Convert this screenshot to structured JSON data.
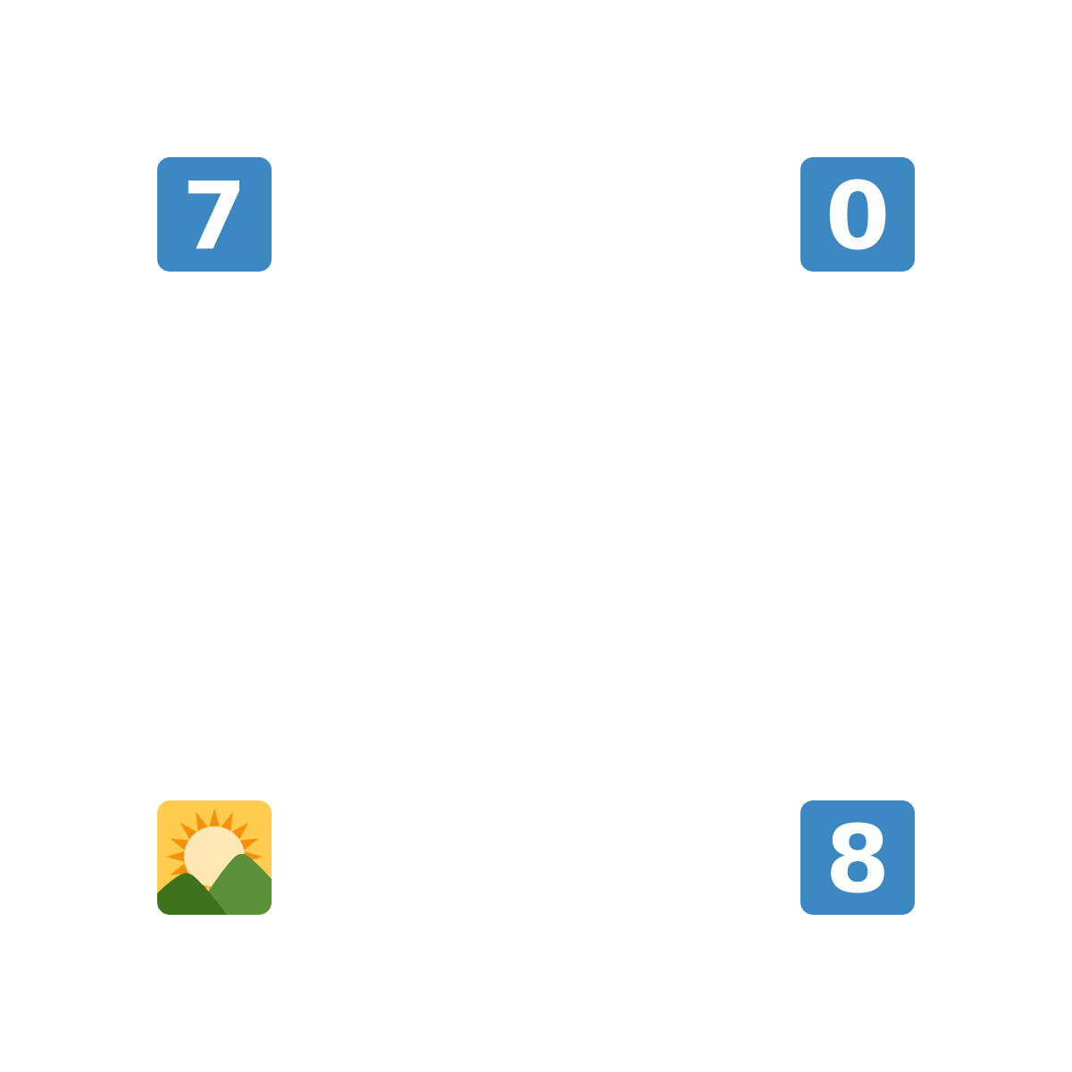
{
  "tiles": {
    "top_left": {
      "icon": "keycap-digit-seven-icon",
      "label": "7",
      "color": "#3b88c3"
    },
    "top_right": {
      "icon": "keycap-digit-zero-icon",
      "label": "0",
      "color": "#3b88c3"
    },
    "bottom_left": {
      "icon": "sunrise-over-mountains-icon"
    },
    "bottom_right": {
      "icon": "keycap-digit-eight-icon",
      "label": "8",
      "color": "#3b88c3"
    }
  },
  "colors": {
    "keycap_blue": "#3b88c3",
    "sky_yellow": "#ffcc4d",
    "sun_rays": "#f4900c",
    "sun_core": "#ffe8b6",
    "mountain_light": "#5c913b",
    "mountain_dark": "#3e721d"
  }
}
